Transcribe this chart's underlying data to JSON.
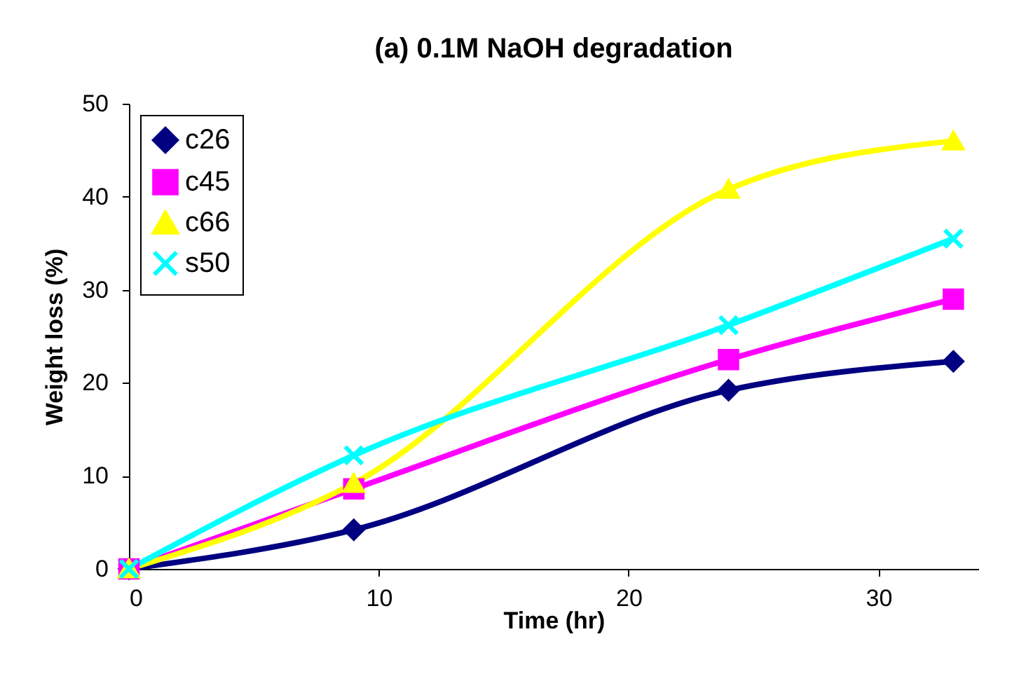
{
  "chart_data": {
    "type": "line",
    "title": "(a) 0.1M NaOH degradation",
    "xlabel": "Time (hr)",
    "ylabel": "Weight loss (%)",
    "x": [
      0,
      9,
      24,
      33
    ],
    "xlim": [
      0,
      34
    ],
    "xticks": [
      0,
      10,
      20,
      30
    ],
    "ylim": [
      0,
      50
    ],
    "yticks": [
      0,
      10,
      20,
      30,
      40,
      50
    ],
    "grid": false,
    "legend": "top left",
    "series": [
      {
        "name": "c26",
        "color": "#000080",
        "marker": "diamond",
        "values": [
          0,
          4.2,
          19.2,
          22.3
        ]
      },
      {
        "name": "c45",
        "color": "#ff00ff",
        "marker": "square",
        "values": [
          0,
          8.6,
          22.5,
          29.0
        ]
      },
      {
        "name": "c66",
        "color": "#ffff00",
        "marker": "triangle",
        "values": [
          0,
          9.2,
          40.8,
          46.0
        ]
      },
      {
        "name": "s50",
        "color": "#00ffff",
        "marker": "cross",
        "values": [
          0,
          12.2,
          26.2,
          35.5
        ]
      }
    ]
  }
}
